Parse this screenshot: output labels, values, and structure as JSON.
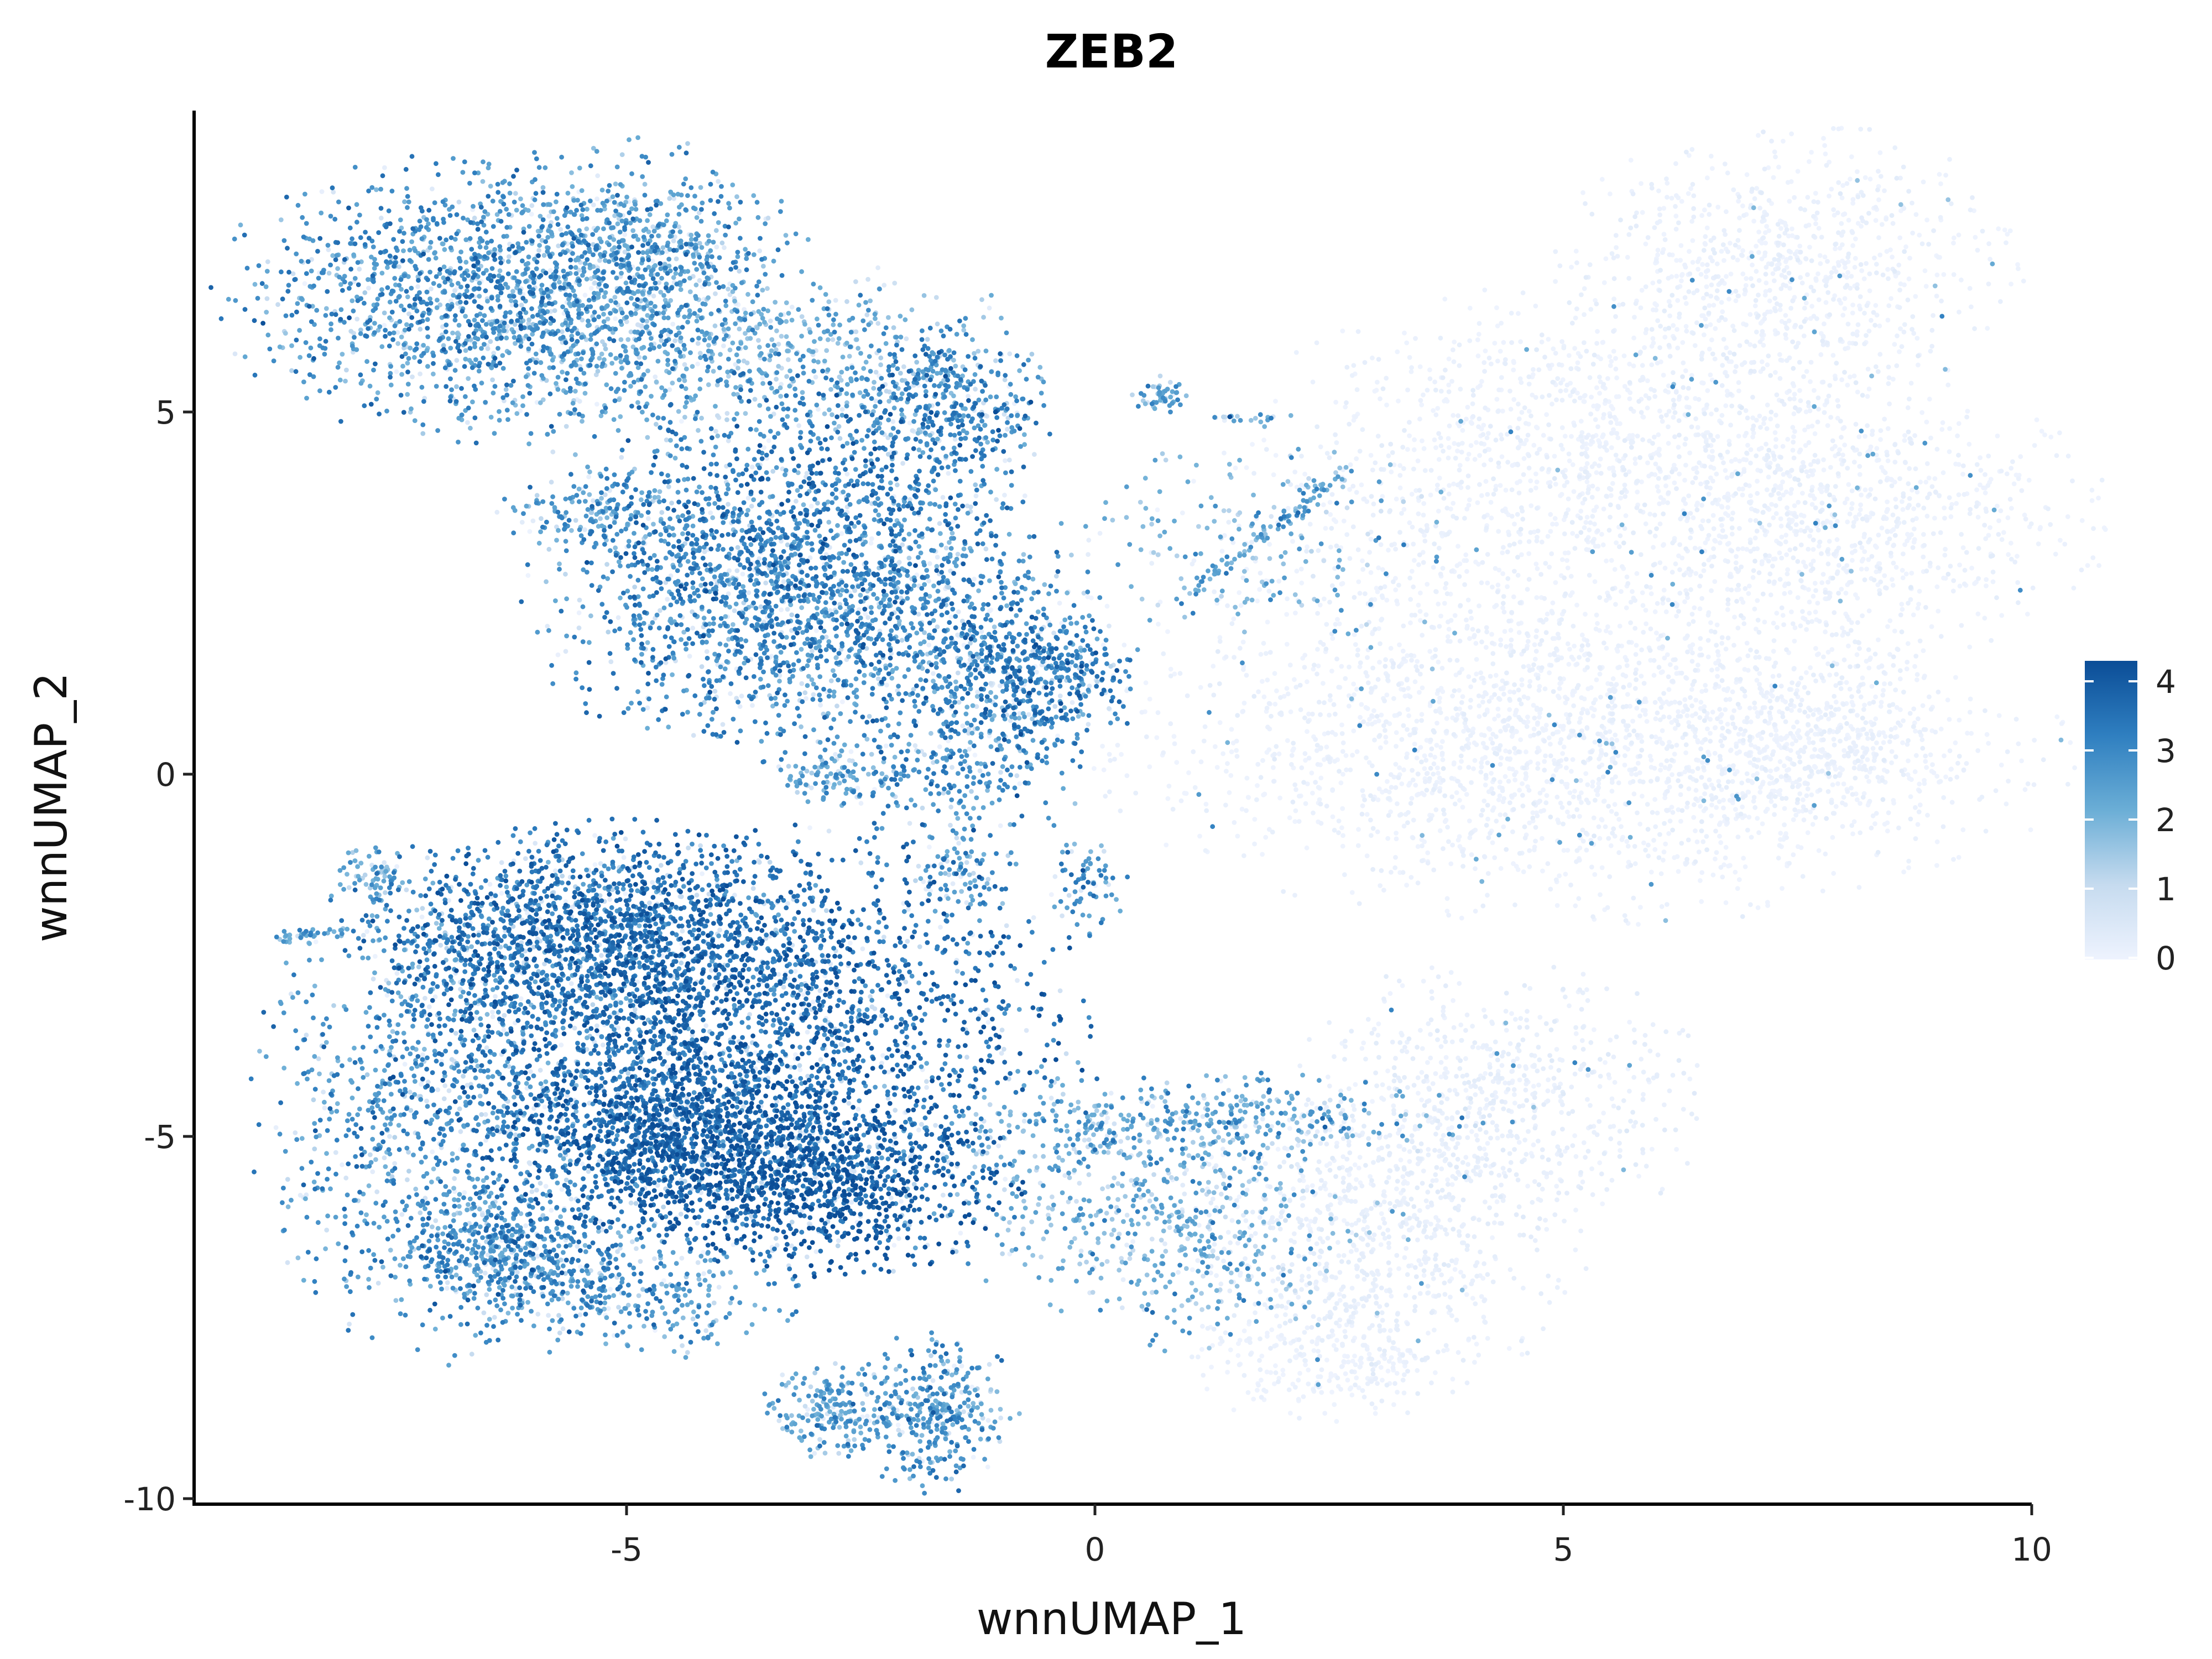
{
  "chart_data": {
    "type": "scatter",
    "title": "ZEB2",
    "xlabel": "wnnUMAP_1",
    "ylabel": "wnnUMAP_2",
    "xlim": [
      -10,
      10
    ],
    "ylim": [
      -10,
      9
    ],
    "x_ticks": [
      -5,
      0,
      5,
      10
    ],
    "x_tick_labels": [
      "-5",
      "0",
      "5",
      "10"
    ],
    "y_ticks": [
      5,
      0,
      -5,
      -10
    ],
    "y_tick_labels": [
      "5",
      "0",
      "-5",
      "-10"
    ],
    "grid": false,
    "legend_position": "right",
    "color_scale": {
      "min": 0,
      "max": 4.3,
      "low_color": "#eef3fe",
      "high_color": "#0b4d97",
      "ticks": [
        4,
        3,
        2,
        1,
        0
      ],
      "tick_labels": [
        "4",
        "3",
        "2",
        "1",
        "0"
      ]
    },
    "clusters": [
      {
        "cx": -6.5,
        "cy": 6.6,
        "rx": 1.3,
        "ry": 0.9,
        "n": 1500,
        "expr": 2.6
      },
      {
        "cx": -4.9,
        "cy": 7.2,
        "rx": 0.8,
        "ry": 0.7,
        "n": 500,
        "expr": 2.4
      },
      {
        "cx": -4.5,
        "cy": 6.0,
        "rx": 1.1,
        "ry": 0.8,
        "n": 450,
        "expr": 2.1
      },
      {
        "cx": -2.7,
        "cy": 5.7,
        "rx": 1.0,
        "ry": 0.6,
        "n": 280,
        "expr": 1.9
      },
      {
        "cx": -1.6,
        "cy": 5.0,
        "rx": 0.5,
        "ry": 0.6,
        "n": 380,
        "expr": 2.9
      },
      {
        "cx": -3.1,
        "cy": 3.3,
        "rx": 1.1,
        "ry": 1.1,
        "n": 1200,
        "expr": 3.0
      },
      {
        "cx": -3.5,
        "cy": 2.2,
        "rx": 1.2,
        "ry": 0.9,
        "n": 900,
        "expr": 2.8
      },
      {
        "cx": -5.3,
        "cy": 3.6,
        "rx": 0.5,
        "ry": 0.3,
        "n": 180,
        "expr": 2.4
      },
      {
        "cx": -1.6,
        "cy": 1.9,
        "rx": 0.9,
        "ry": 0.9,
        "n": 500,
        "expr": 2.6
      },
      {
        "cx": -0.6,
        "cy": 1.3,
        "rx": 0.5,
        "ry": 0.5,
        "n": 450,
        "expr": 3.0
      },
      {
        "cx": -1.5,
        "cy": 0.0,
        "rx": 0.6,
        "ry": 0.5,
        "n": 260,
        "expr": 2.7
      },
      {
        "cx": -2.8,
        "cy": 0.0,
        "rx": 0.3,
        "ry": 0.2,
        "n": 100,
        "expr": 2.2
      },
      {
        "cx": -1.4,
        "cy": -1.4,
        "rx": 0.25,
        "ry": 0.3,
        "n": 90,
        "expr": 2.4
      },
      {
        "cx": -0.1,
        "cy": -1.6,
        "rx": 0.2,
        "ry": 0.35,
        "n": 70,
        "expr": 2.6
      },
      {
        "cx": 0.7,
        "cy": 5.2,
        "rx": 0.15,
        "ry": 0.15,
        "n": 50,
        "expr": 2.2
      },
      {
        "cx": 1.6,
        "cy": 4.9,
        "rx": 0.2,
        "ry": 0.05,
        "n": 20,
        "expr": 2.3
      },
      {
        "cx": 1.8,
        "cy": 3.2,
        "rx": 0.9,
        "ry": 0.7,
        "n": 160,
        "expr": 2.0
      },
      {
        "cx": 7.4,
        "cy": 7.0,
        "rx": 1.1,
        "ry": 0.9,
        "n": 800,
        "expr": 0.05
      },
      {
        "cx": 5.3,
        "cy": 4.8,
        "rx": 1.6,
        "ry": 0.9,
        "n": 900,
        "expr": 0.05
      },
      {
        "cx": 7.9,
        "cy": 3.5,
        "rx": 1.3,
        "ry": 0.9,
        "n": 900,
        "expr": 0.05
      },
      {
        "cx": 4.2,
        "cy": 2.3,
        "rx": 2.0,
        "ry": 1.2,
        "n": 900,
        "expr": 0.05
      },
      {
        "cx": 5.2,
        "cy": 0.2,
        "rx": 2.3,
        "ry": 1.0,
        "n": 1800,
        "expr": 0.05
      },
      {
        "cx": 7.7,
        "cy": 0.4,
        "rx": 0.8,
        "ry": 0.6,
        "n": 450,
        "expr": 0.05
      },
      {
        "cx": -5.3,
        "cy": -2.2,
        "rx": 1.2,
        "ry": 0.7,
        "n": 1400,
        "expr": 3.3
      },
      {
        "cx": -3.8,
        "cy": -3.4,
        "rx": 1.7,
        "ry": 1.2,
        "n": 2400,
        "expr": 3.5
      },
      {
        "cx": -4.6,
        "cy": -5.0,
        "rx": 0.9,
        "ry": 0.6,
        "n": 1100,
        "expr": 3.6
      },
      {
        "cx": -3.0,
        "cy": -5.6,
        "rx": 1.0,
        "ry": 0.6,
        "n": 1100,
        "expr": 3.9
      },
      {
        "cx": -7.0,
        "cy": -4.5,
        "rx": 0.9,
        "ry": 1.6,
        "n": 1100,
        "expr": 2.6
      },
      {
        "cx": -6.2,
        "cy": -6.5,
        "rx": 0.6,
        "ry": 0.4,
        "n": 450,
        "expr": 2.8
      },
      {
        "cx": -5.1,
        "cy": -7.2,
        "rx": 0.9,
        "ry": 0.4,
        "n": 350,
        "expr": 2.5
      },
      {
        "cx": -7.7,
        "cy": -1.4,
        "rx": 0.2,
        "ry": 0.2,
        "n": 70,
        "expr": 2.2
      },
      {
        "cx": -1.7,
        "cy": -8.8,
        "rx": 0.4,
        "ry": 0.5,
        "n": 350,
        "expr": 2.5
      },
      {
        "cx": -2.8,
        "cy": -8.8,
        "rx": 0.35,
        "ry": 0.3,
        "n": 200,
        "expr": 2.3
      },
      {
        "cx": 1.2,
        "cy": -4.8,
        "rx": 1.3,
        "ry": 0.3,
        "n": 380,
        "expr": 2.2
      },
      {
        "cx": 1.0,
        "cy": -6.4,
        "rx": 0.8,
        "ry": 0.7,
        "n": 380,
        "expr": 1.9
      },
      {
        "cx": -0.4,
        "cy": -5.5,
        "rx": 0.9,
        "ry": 0.7,
        "n": 250,
        "expr": 2.0
      },
      {
        "cx": 4.3,
        "cy": -4.5,
        "rx": 1.0,
        "ry": 0.9,
        "n": 650,
        "expr": 0.15
      },
      {
        "cx": 3.0,
        "cy": -6.9,
        "rx": 1.0,
        "ry": 0.7,
        "n": 450,
        "expr": 0.15
      },
      {
        "cx": 2.5,
        "cy": -8.1,
        "rx": 0.7,
        "ry": 0.4,
        "n": 250,
        "expr": 0.05
      },
      {
        "cx": 3.0,
        "cy": -5.6,
        "rx": 1.0,
        "ry": 0.6,
        "n": 300,
        "expr": 0.15
      }
    ],
    "strokes": [
      {
        "x1": -8.7,
        "y1": -2.25,
        "x2": -8.0,
        "y2": -2.15,
        "n": 40,
        "expr": 2.2
      },
      {
        "x1": 1.0,
        "y1": 2.5,
        "x2": 2.7,
        "y2": 4.2,
        "n": 90,
        "expr": 2.3
      }
    ]
  }
}
